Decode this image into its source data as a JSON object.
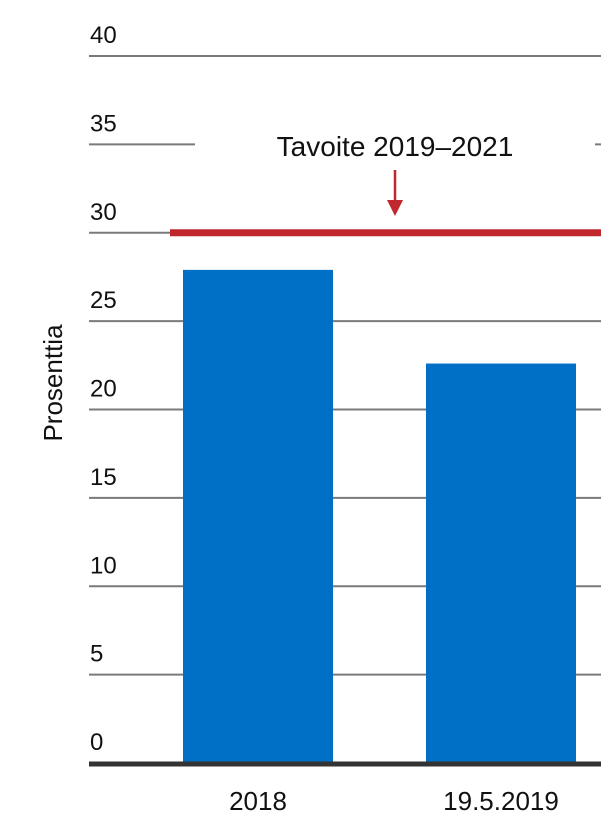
{
  "chart_data": {
    "type": "bar",
    "categories": [
      "2018",
      "19.5.2019"
    ],
    "values": [
      27.9,
      22.6
    ],
    "ylabel": "Prosenttia",
    "ylim": [
      0,
      40
    ],
    "yticks": [
      "0",
      "5",
      "10",
      "15",
      "20",
      "25",
      "30",
      "35",
      "40"
    ],
    "grid": true,
    "target": {
      "label": "Tavoite 2019–2021",
      "value": 30
    },
    "colors": {
      "bar": "#0070c6",
      "target": "#c0282d",
      "grid": "#7a7a7a",
      "baseline": "#333333"
    }
  }
}
